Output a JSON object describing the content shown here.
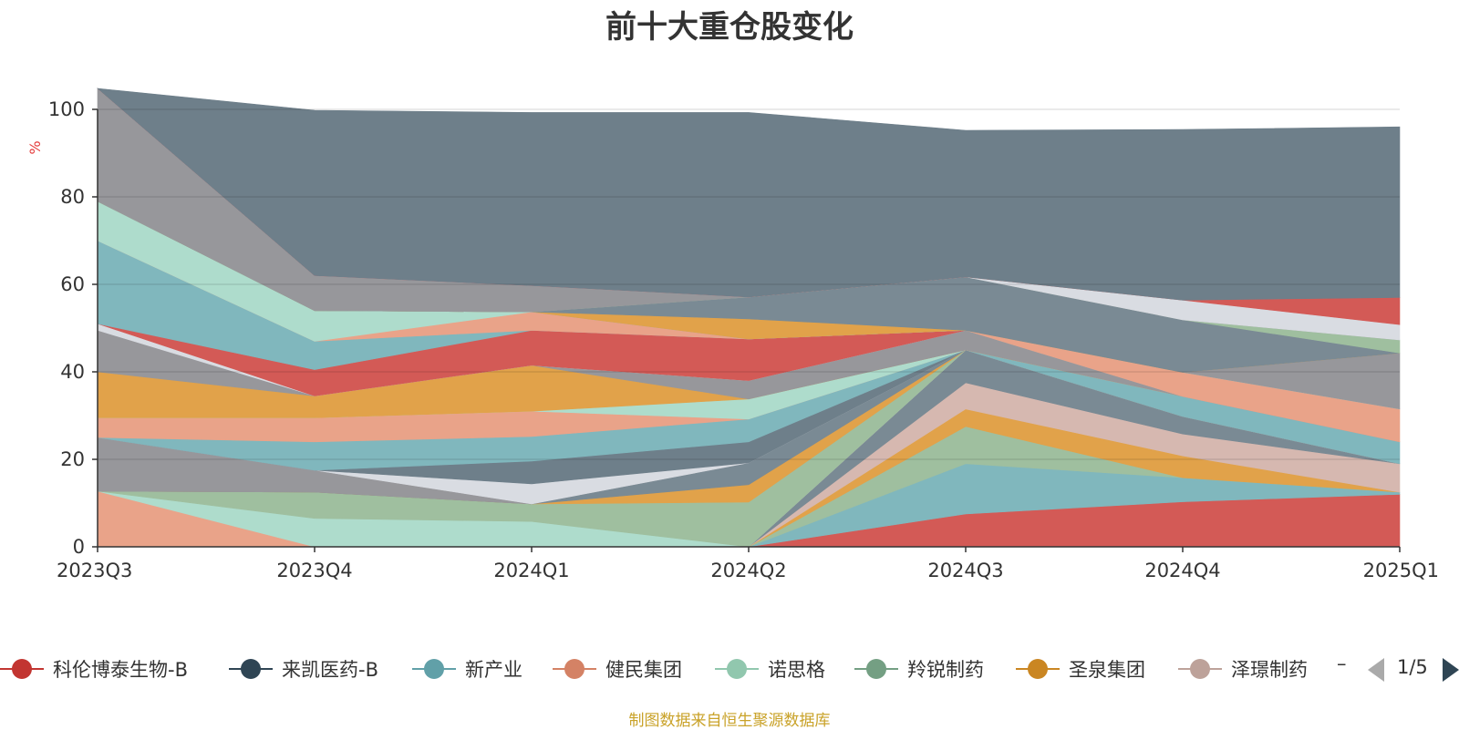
{
  "chart_data": {
    "type": "area",
    "stacked": true,
    "title": "前十大重仓股变化",
    "ylabel": "%",
    "xlabel": "",
    "ylim": [
      0,
      100
    ],
    "yticks": [
      0,
      20,
      40,
      60,
      80,
      100
    ],
    "grid": true,
    "legend_position": "bottom",
    "categories": [
      "2023Q3",
      "2023Q4",
      "2024Q1",
      "2024Q2",
      "2024Q3",
      "2024Q4",
      "2025Q1"
    ],
    "series": [
      {
        "name": "",
        "color": "#d35a56",
        "values": [
          0,
          0,
          0,
          0,
          7.5,
          10.3,
          12.0
        ]
      },
      {
        "name": "",
        "color": "#80b7bd",
        "values": [
          0,
          0,
          0,
          0,
          11.5,
          5.5,
          0.5
        ]
      },
      {
        "name": "",
        "color": "#9fbf9f",
        "values": [
          0,
          0,
          0,
          0,
          8.5,
          0,
          0
        ]
      },
      {
        "name": "",
        "color": "#e1a24a",
        "values": [
          0,
          0,
          0,
          0,
          4.0,
          5.0,
          0
        ]
      },
      {
        "name": "",
        "color": "#d6b8b0",
        "values": [
          0,
          0,
          0,
          0,
          6.0,
          5.0,
          6.5
        ]
      },
      {
        "name": "",
        "color": "#7a8a94",
        "values": [
          0,
          0,
          0,
          0,
          7.5,
          4.0,
          0
        ]
      },
      {
        "name": "",
        "color": "#e9a389",
        "values": [
          12.7,
          0,
          0,
          0,
          0,
          0,
          0
        ]
      },
      {
        "name": "",
        "color": "#aedccc",
        "values": [
          0,
          6.5,
          5.8,
          0,
          0,
          0,
          0
        ]
      },
      {
        "name": "",
        "color": "#9fbf9f",
        "values": [
          0,
          6.0,
          4.0,
          10.2,
          0,
          0,
          0
        ]
      },
      {
        "name": "",
        "color": "#e1a24a",
        "values": [
          0,
          0,
          0,
          4.0,
          0,
          0,
          0
        ]
      },
      {
        "name": "",
        "color": "#7a8a94",
        "values": [
          0,
          0,
          0,
          5.0,
          0,
          0,
          0
        ]
      },
      {
        "name": "",
        "color": "#97979b",
        "values": [
          12.3,
          5.0,
          0,
          0,
          0,
          0,
          0
        ]
      },
      {
        "name": "",
        "color": "#d9dce2",
        "values": [
          0,
          0,
          4.6,
          0,
          0,
          0,
          0
        ]
      },
      {
        "name": "",
        "color": "#6e7f8a",
        "values": [
          0,
          0,
          5.2,
          4.8,
          0,
          0,
          0
        ]
      },
      {
        "name": "",
        "color": "#80b7bd",
        "values": [
          0,
          6.5,
          5.6,
          5.2,
          0,
          4.6,
          5.0
        ]
      },
      {
        "name": "",
        "color": "#e9a389",
        "values": [
          4.5,
          5.5,
          5.8,
          0,
          0,
          0,
          0
        ]
      },
      {
        "name": "",
        "color": "#aedccc",
        "values": [
          0,
          0,
          0,
          4.6,
          0,
          0,
          0
        ]
      },
      {
        "name": "",
        "color": "#e1a24a",
        "values": [
          10.5,
          5.0,
          10.5,
          0,
          0,
          0,
          0
        ]
      },
      {
        "name": "",
        "color": "#97979b",
        "values": [
          9.5,
          0,
          0,
          4.2,
          4.5,
          0,
          0
        ]
      },
      {
        "name": "",
        "color": "#d9dce2",
        "values": [
          1.5,
          0,
          0,
          0,
          0,
          0,
          0
        ]
      },
      {
        "name": "",
        "color": "#d35a56",
        "values": [
          0,
          6.0,
          8.0,
          9.5,
          0,
          0,
          0
        ]
      },
      {
        "name": "",
        "color": "#80b7bd",
        "values": [
          19.0,
          6.5,
          0,
          0,
          0,
          0,
          0
        ]
      },
      {
        "name": "",
        "color": "#e9a389",
        "values": [
          0,
          0,
          4.2,
          0,
          0,
          5.5,
          7.5
        ]
      },
      {
        "name": "",
        "color": "#aedccc",
        "values": [
          9.0,
          7.0,
          0,
          0,
          0,
          0,
          0
        ]
      },
      {
        "name": "",
        "color": "#97979b",
        "values": [
          0,
          0,
          0,
          0,
          0,
          0,
          12.8
        ]
      },
      {
        "name": "",
        "color": "#e1a24a",
        "values": [
          0,
          0,
          0,
          4.6,
          0,
          0,
          0
        ]
      },
      {
        "name": "",
        "color": "#7a8a94",
        "values": [
          0,
          0,
          0,
          5.0,
          12.2,
          12.0,
          0
        ]
      },
      {
        "name": "",
        "color": "#9fbf9f",
        "values": [
          0,
          0,
          0,
          0,
          0,
          0,
          3.0
        ]
      },
      {
        "name": "",
        "color": "#97979b",
        "values": [
          25.8,
          8.0,
          6.0,
          0,
          0,
          0,
          0
        ]
      },
      {
        "name": "",
        "color": "#d9dce2",
        "values": [
          0,
          0,
          0,
          0,
          0,
          4.5,
          3.5
        ]
      },
      {
        "name": "",
        "color": "#d35a56",
        "values": [
          0,
          0,
          0,
          0,
          0,
          0,
          6.2
        ]
      },
      {
        "name": "",
        "color": "#6e7f8a",
        "values": [
          0,
          37.8,
          39.6,
          42.2,
          33.5,
          39.0,
          39.0
        ]
      }
    ]
  },
  "legend": {
    "items": [
      {
        "label": "科伦博泰生物-B",
        "color": "#c23531"
      },
      {
        "label": "来凯医药-B",
        "color": "#2f4554"
      },
      {
        "label": "新产业",
        "color": "#61a0a8"
      },
      {
        "label": "健民集团",
        "color": "#d48265"
      },
      {
        "label": "诺思格",
        "color": "#91c7ae"
      },
      {
        "label": "羚锐制药",
        "color": "#749f83"
      },
      {
        "label": "圣泉集团",
        "color": "#ca8622"
      },
      {
        "label": "泽璟制药",
        "color": "#bda29a"
      }
    ],
    "more": "–",
    "page": "1/5"
  },
  "source": "制图数据来自恒生聚源数据库"
}
